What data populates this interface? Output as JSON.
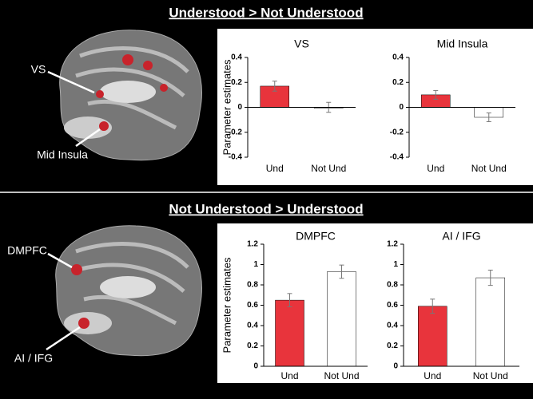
{
  "sections": [
    {
      "title": "Understood > Not Understood",
      "brain_labels": [
        "VS",
        "Mid Insula"
      ]
    },
    {
      "title": "Not Understood > Understood",
      "brain_labels": [
        "DMPFC",
        "AI / IFG"
      ]
    }
  ],
  "chart_data": [
    {
      "type": "bar",
      "title": "VS",
      "ylabel": "Parameter estimates",
      "categories": [
        "Und",
        "Not Und"
      ],
      "values": [
        0.17,
        0.0
      ],
      "errors": [
        0.04,
        0.04
      ],
      "colors": [
        "#e8343c",
        "#ffffff"
      ],
      "ylim": [
        -0.4,
        0.4
      ],
      "yticks": [
        -0.4,
        -0.2,
        0,
        0.2,
        0.4
      ]
    },
    {
      "type": "bar",
      "title": "Mid Insula",
      "categories": [
        "Und",
        "Not Und"
      ],
      "values": [
        0.1,
        -0.08
      ],
      "errors": [
        0.035,
        0.035
      ],
      "colors": [
        "#e8343c",
        "#ffffff"
      ],
      "ylim": [
        -0.4,
        0.4
      ],
      "yticks": [
        -0.4,
        -0.2,
        0,
        0.2,
        0.4
      ]
    },
    {
      "type": "bar",
      "title": "DMPFC",
      "ylabel": "Parameter estimates",
      "categories": [
        "Und",
        "Not Und"
      ],
      "values": [
        0.65,
        0.93
      ],
      "errors": [
        0.065,
        0.065
      ],
      "colors": [
        "#e8343c",
        "#ffffff"
      ],
      "ylim": [
        0,
        1.2
      ],
      "yticks": [
        0,
        0.2,
        0.4,
        0.6,
        0.8,
        1,
        1.2
      ]
    },
    {
      "type": "bar",
      "title": "AI / IFG",
      "categories": [
        "Und",
        "Not Und"
      ],
      "values": [
        0.59,
        0.87
      ],
      "errors": [
        0.07,
        0.075
      ],
      "colors": [
        "#e8343c",
        "#ffffff"
      ],
      "ylim": [
        0,
        1.2
      ],
      "yticks": [
        0,
        0.2,
        0.4,
        0.6,
        0.8,
        1,
        1.2
      ]
    }
  ]
}
